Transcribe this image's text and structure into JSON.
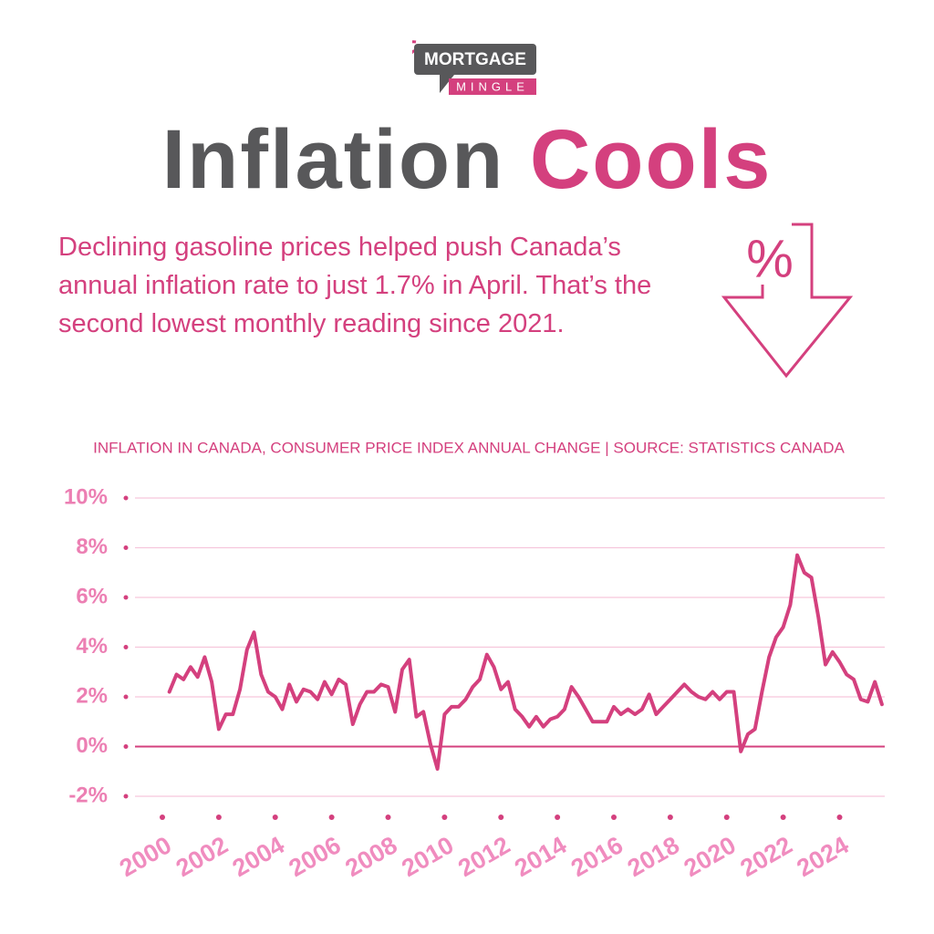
{
  "header": {
    "logo_top": "MORTGAGE",
    "logo_bottom": "MINGLE",
    "title_dark": "Inflation",
    "title_accent": "Cools",
    "description": "Declining gasoline prices helped push Canada’s annual inflation rate to just 1.7% in April. That’s the second lowest monthly reading since 2021.",
    "icon_symbol": "%"
  },
  "chart_data": {
    "type": "line",
    "title": "INFLATION IN CANADA, CONSUMER PRICE INDEX ANNUAL CHANGE | SOURCE: STATISTICS CANADA",
    "color": "#d4407e",
    "x": [
      2000.25,
      2000.5,
      2000.75,
      2001,
      2001.25,
      2001.5,
      2001.75,
      2002,
      2002.25,
      2002.5,
      2002.75,
      2003,
      2003.25,
      2003.5,
      2003.75,
      2004,
      2004.25,
      2004.5,
      2004.75,
      2005,
      2005.25,
      2005.5,
      2005.75,
      2006,
      2006.25,
      2006.5,
      2006.75,
      2007,
      2007.25,
      2007.5,
      2007.75,
      2008,
      2008.25,
      2008.5,
      2008.75,
      2009,
      2009.25,
      2009.5,
      2009.75,
      2010,
      2010.25,
      2010.5,
      2010.75,
      2011,
      2011.25,
      2011.5,
      2011.75,
      2012,
      2012.25,
      2012.5,
      2012.75,
      2013,
      2013.25,
      2013.5,
      2013.75,
      2014,
      2014.25,
      2014.5,
      2014.75,
      2015,
      2015.25,
      2015.5,
      2015.75,
      2016,
      2016.25,
      2016.5,
      2016.75,
      2017,
      2017.25,
      2017.5,
      2017.75,
      2018,
      2018.25,
      2018.5,
      2018.75,
      2019,
      2019.25,
      2019.5,
      2019.75,
      2020,
      2020.25,
      2020.5,
      2020.75,
      2021,
      2021.25,
      2021.5,
      2021.75,
      2022,
      2022.25,
      2022.5,
      2022.75,
      2023,
      2023.25,
      2023.5,
      2023.75,
      2024,
      2024.25,
      2024.5,
      2024.75,
      2025,
      2025.25,
      2025.5
    ],
    "values": [
      2.2,
      2.9,
      2.7,
      3.2,
      2.8,
      3.6,
      2.6,
      0.7,
      1.3,
      1.3,
      2.3,
      3.9,
      4.6,
      2.9,
      2.2,
      2.0,
      1.5,
      2.5,
      1.8,
      2.3,
      2.2,
      1.9,
      2.6,
      2.1,
      2.7,
      2.5,
      0.9,
      1.7,
      2.2,
      2.2,
      2.5,
      2.4,
      1.4,
      3.1,
      3.5,
      1.2,
      1.4,
      0.1,
      -0.9,
      1.3,
      1.6,
      1.6,
      1.9,
      2.4,
      2.7,
      3.7,
      3.2,
      2.3,
      2.6,
      1.5,
      1.2,
      0.8,
      1.2,
      0.8,
      1.1,
      1.2,
      1.5,
      2.4,
      2.0,
      1.5,
      1.0,
      1.0,
      1.0,
      1.6,
      1.3,
      1.5,
      1.3,
      1.5,
      2.1,
      1.3,
      1.6,
      1.9,
      2.2,
      2.5,
      2.2,
      2.0,
      1.9,
      2.2,
      1.9,
      2.2,
      2.2,
      -0.2,
      0.5,
      0.7,
      2.2,
      3.6,
      4.4,
      4.8,
      5.7,
      7.7,
      7.0,
      6.8,
      5.2,
      3.3,
      3.8,
      3.4,
      2.9,
      2.7,
      1.9,
      1.8,
      2.6,
      1.7
    ],
    "xlim": [
      2000,
      2025.6
    ],
    "xticks": [
      2000,
      2002,
      2004,
      2006,
      2008,
      2010,
      2012,
      2014,
      2016,
      2018,
      2020,
      2022,
      2024
    ],
    "ylim": [
      -2,
      10
    ],
    "yticks": [
      {
        "value": -2,
        "label": "-2%"
      },
      {
        "value": 0,
        "label": "0%"
      },
      {
        "value": 2,
        "label": "2%"
      },
      {
        "value": 4,
        "label": "4%"
      },
      {
        "value": 6,
        "label": "6%"
      },
      {
        "value": 8,
        "label": "8%"
      },
      {
        "value": 10,
        "label": "10%"
      }
    ],
    "grid": true
  }
}
